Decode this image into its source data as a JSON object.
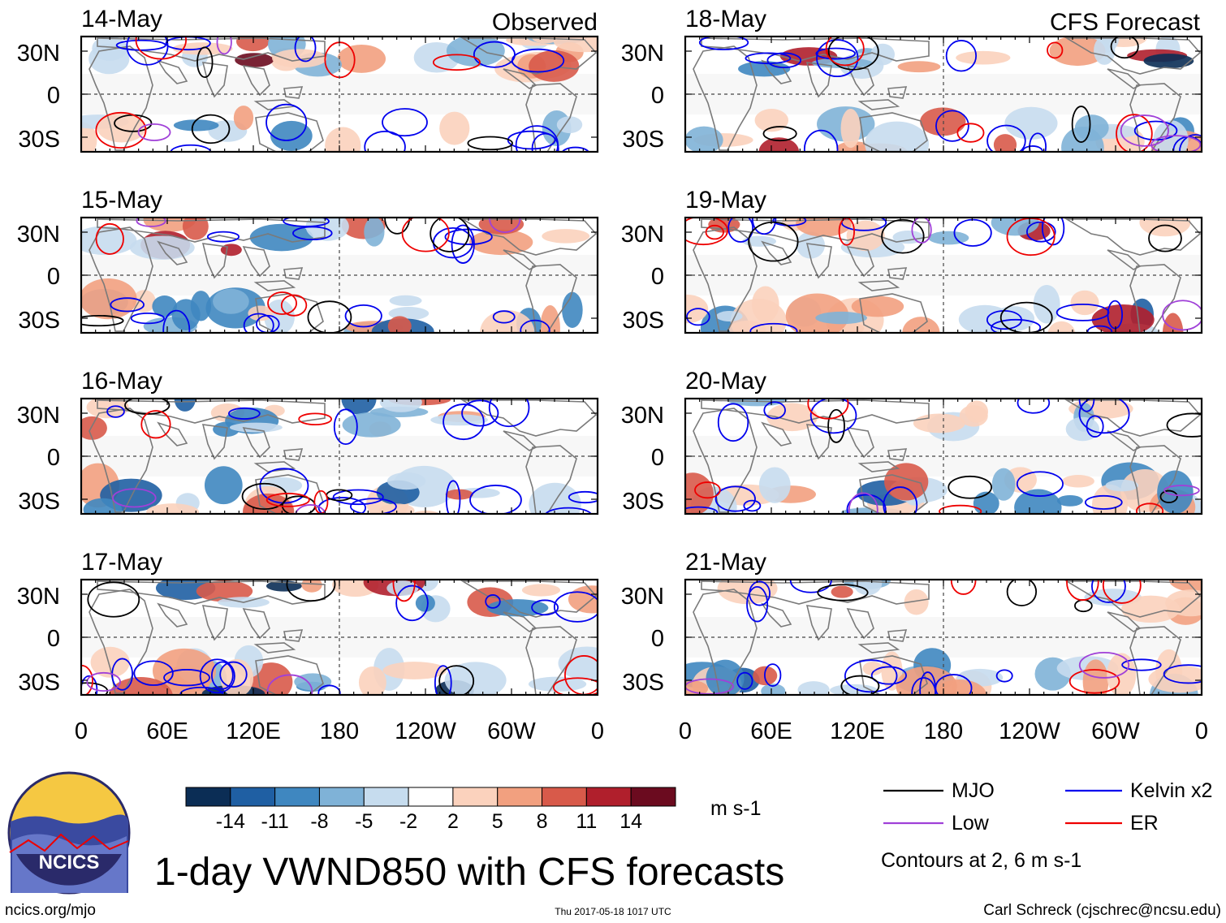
{
  "header": {
    "observed_label": "Observed",
    "forecast_label": "CFS Forecast"
  },
  "title": "1-day VWND850 with CFS forecasts",
  "footer": {
    "url": "ncics.org/mjo",
    "timestamp": "Thu 2017-05-18 1017 UTC",
    "author": "Carl Schreck (cjschrec@ncsu.edu)"
  },
  "logo": {
    "text": "NCICS"
  },
  "colorbar": {
    "units": "m s-1",
    "ticks": [
      "-14",
      "-11",
      "-8",
      "-5",
      "-2",
      "2",
      "5",
      "8",
      "11",
      "14"
    ],
    "colors": [
      "#0b2d55",
      "#1f5fa3",
      "#3f87c0",
      "#7fb2d7",
      "#c6dcee",
      "#ffffff",
      "#fbd2bd",
      "#f2a07f",
      "#d85a4a",
      "#b01f2c",
      "#6b0b1f"
    ]
  },
  "legend": {
    "items": [
      {
        "label": "MJO",
        "color": "#000000"
      },
      {
        "label": "Kelvin x2",
        "color": "#0000ee"
      },
      {
        "label": "Low",
        "color": "#a040d8"
      },
      {
        "label": "ER",
        "color": "#ee0000"
      }
    ],
    "note": "Contours at 2, 6 m s-1"
  },
  "chart_data": {
    "type": "heatmap",
    "variable": "850-hPa meridional wind (VWND850)",
    "lat_ticks": [
      "30N",
      "0",
      "30S"
    ],
    "lon_ticks": [
      "0",
      "60E",
      "120E",
      "180",
      "120W",
      "60W",
      "0"
    ],
    "lat_range": [
      -40,
      40
    ],
    "lon_range": [
      0,
      360
    ],
    "panels": [
      {
        "date": "14-May",
        "group": "Observed"
      },
      {
        "date": "15-May",
        "group": "Observed"
      },
      {
        "date": "16-May",
        "group": "Observed"
      },
      {
        "date": "17-May",
        "group": "Observed"
      },
      {
        "date": "18-May",
        "group": "CFS Forecast"
      },
      {
        "date": "19-May",
        "group": "CFS Forecast"
      },
      {
        "date": "20-May",
        "group": "CFS Forecast"
      },
      {
        "date": "21-May",
        "group": "CFS Forecast"
      }
    ]
  }
}
